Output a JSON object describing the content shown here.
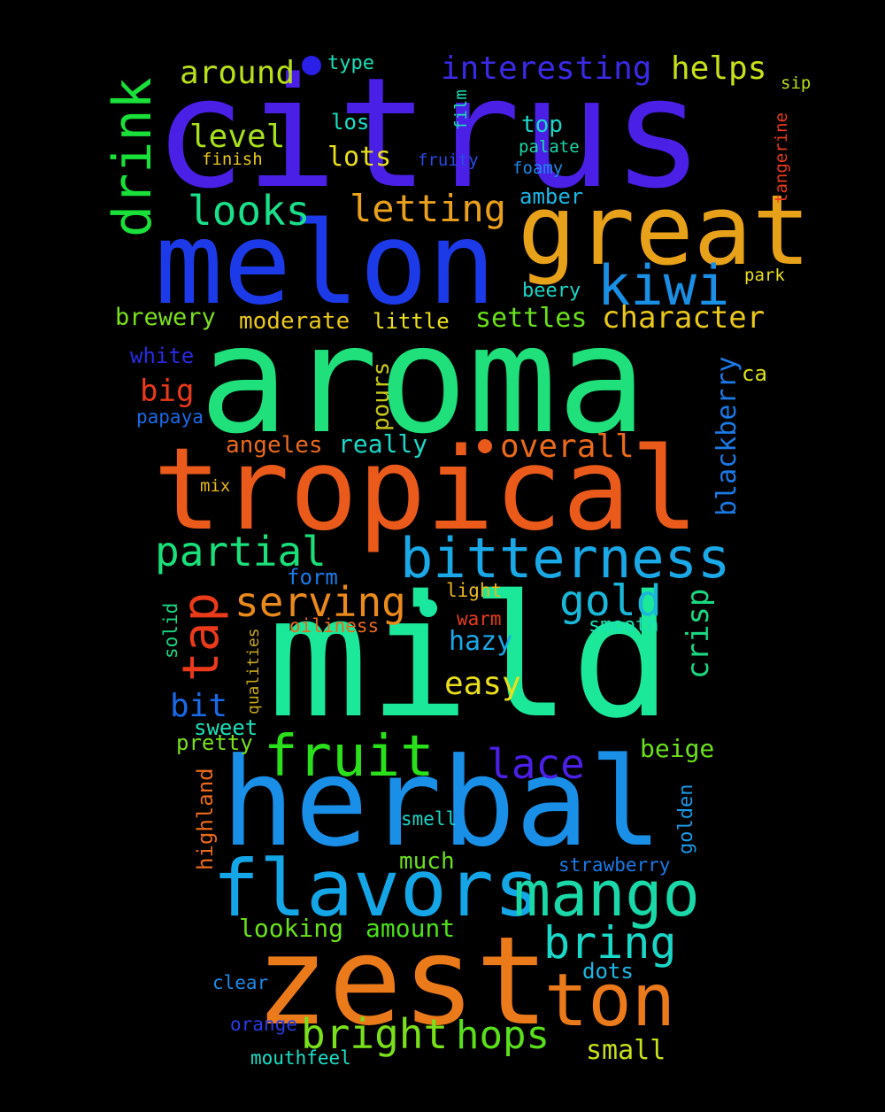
{
  "words": [
    {
      "text": "citrus",
      "color": "#4a1fe6"
    },
    {
      "text": "aroma",
      "color": "#1fe07a"
    },
    {
      "text": "melon",
      "color": "#1c3ae8"
    },
    {
      "text": "tropical",
      "color": "#ea5a1a"
    },
    {
      "text": "mild",
      "color": "#1ce89a"
    },
    {
      "text": "herbal",
      "color": "#1a8fe8"
    },
    {
      "text": "great",
      "color": "#e8a21a"
    },
    {
      "text": "zest",
      "color": "#ea7a1a"
    },
    {
      "text": "flavors",
      "color": "#14a6e6"
    },
    {
      "text": "mango",
      "color": "#1ad8a8"
    },
    {
      "text": "bitterness",
      "color": "#1aa8e6"
    },
    {
      "text": "ton",
      "color": "#ea7a1a"
    },
    {
      "text": "fruit",
      "color": "#2ae01a"
    },
    {
      "text": "drink",
      "color": "#1ae03a"
    },
    {
      "text": "kiwi",
      "color": "#1a8fe6"
    },
    {
      "text": "bright",
      "color": "#7ae01a"
    },
    {
      "text": "hops",
      "color": "#5ae01a"
    },
    {
      "text": "bring",
      "color": "#1ad8c8"
    },
    {
      "text": "tap",
      "color": "#ea3a1a"
    },
    {
      "text": "partial",
      "color": "#1ae07a"
    },
    {
      "text": "serving",
      "color": "#ea8a1a"
    },
    {
      "text": "gold",
      "color": "#1ab8d8"
    },
    {
      "text": "lace",
      "color": "#4a1fe6"
    },
    {
      "text": "looks",
      "color": "#1ae08a"
    },
    {
      "text": "letting",
      "color": "#eaa01a"
    },
    {
      "text": "interesting",
      "color": "#3a2ae6"
    },
    {
      "text": "helps",
      "color": "#c8e01a"
    },
    {
      "text": "around",
      "color": "#b8e01a"
    },
    {
      "text": "level",
      "color": "#a8e01a"
    },
    {
      "text": "character",
      "color": "#eac81a"
    },
    {
      "text": "overall",
      "color": "#ea6a1a"
    },
    {
      "text": "settles",
      "color": "#6ae01a"
    },
    {
      "text": "moderate",
      "color": "#eac81a"
    },
    {
      "text": "brewery",
      "color": "#7ae01a"
    },
    {
      "text": "really",
      "color": "#1ad8c8"
    },
    {
      "text": "angeles",
      "color": "#ea6a1a"
    },
    {
      "text": "big",
      "color": "#ea3a1a"
    },
    {
      "text": "easy",
      "color": "#eae01a"
    },
    {
      "text": "hazy",
      "color": "#1aa8e6"
    },
    {
      "text": "bit",
      "color": "#1a6ae8"
    },
    {
      "text": "crisp",
      "color": "#1ad880"
    },
    {
      "text": "lots",
      "color": "#eae01a"
    },
    {
      "text": "blackberry",
      "color": "#1a7ae6"
    },
    {
      "text": "pours",
      "color": "#c8c81a"
    },
    {
      "text": "small",
      "color": "#c8e01a"
    },
    {
      "text": "looking",
      "color": "#6ae01a"
    },
    {
      "text": "amount",
      "color": "#4ae01a"
    },
    {
      "text": "beige",
      "color": "#6ae01a"
    },
    {
      "text": "sweet",
      "color": "#1ae0b8"
    },
    {
      "text": "pretty",
      "color": "#7ae01a"
    },
    {
      "text": "much",
      "color": "#6ae01a"
    },
    {
      "text": "dots",
      "color": "#1ab8e6"
    },
    {
      "text": "little",
      "color": "#eae01a"
    },
    {
      "text": "amber",
      "color": "#1ab8e6"
    },
    {
      "text": "top",
      "color": "#1ad8c8"
    },
    {
      "text": "type",
      "color": "#1ae0b8"
    },
    {
      "text": "los",
      "color": "#1ae0c8"
    },
    {
      "text": "white",
      "color": "#2a2ae6"
    },
    {
      "text": "beery",
      "color": "#1ad8c8"
    },
    {
      "text": "ca",
      "color": "#d8e01a"
    },
    {
      "text": "papaya",
      "color": "#1a6ae8"
    },
    {
      "text": "form",
      "color": "#1a7ae6"
    },
    {
      "text": "light",
      "color": "#eab81a"
    },
    {
      "text": "warm",
      "color": "#ea3a1a"
    },
    {
      "text": "oiliness",
      "color": "#ea6a1a"
    },
    {
      "text": "smooth",
      "color": "#1ae0b8"
    },
    {
      "text": "golden",
      "color": "#1a9ae6"
    },
    {
      "text": "highland",
      "color": "#ea6a1a"
    },
    {
      "text": "smell",
      "color": "#1ad8c8"
    },
    {
      "text": "strawberry",
      "color": "#1a7ae6"
    },
    {
      "text": "clear",
      "color": "#1a8ae6"
    },
    {
      "text": "orange",
      "color": "#2a3ae6"
    },
    {
      "text": "mouthfeel",
      "color": "#1ae0c8"
    },
    {
      "text": "solid",
      "color": "#1ad880"
    },
    {
      "text": "qualities",
      "color": "#c8a81a"
    },
    {
      "text": "mix",
      "color": "#eab81a"
    },
    {
      "text": "finish",
      "color": "#eac81a"
    },
    {
      "text": "fruity",
      "color": "#2a4ae6"
    },
    {
      "text": "palate",
      "color": "#1ad8a8"
    },
    {
      "text": "foamy",
      "color": "#1a8ae6"
    },
    {
      "text": "park",
      "color": "#eae01a"
    },
    {
      "text": "sip",
      "color": "#b8e01a"
    },
    {
      "text": "film",
      "color": "#1ae0b8"
    },
    {
      "text": "tangerine",
      "color": "#ea3a1a"
    }
  ],
  "dots": [
    {
      "color": "#2a1fe6"
    },
    {
      "color": "#ea5a1a"
    },
    {
      "color": "#1ae8a0"
    }
  ]
}
